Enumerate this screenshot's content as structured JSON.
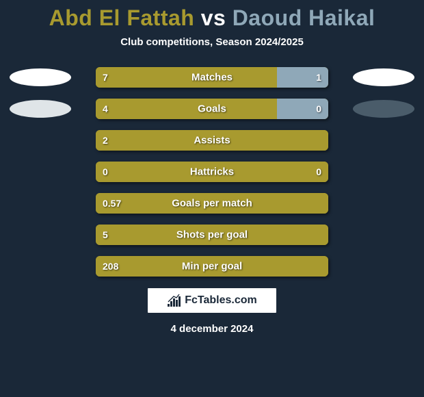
{
  "title_p1": "Abd El Fattah",
  "title_vs": " vs ",
  "title_p2": "Daoud Haikal",
  "subtitle": "Club competitions, Season 2024/2025",
  "player1_color": "#a89a2f",
  "player2_color": "#8fa8b8",
  "badge_left_colors": [
    "#ffffff",
    "#dfe5e8"
  ],
  "badge_right_colors": [
    "#ffffff",
    "#4a5c6a"
  ],
  "background_color": "#1a2838",
  "label_fontsize": 15,
  "value_fontsize": 14,
  "title_fontsize": 32,
  "rows": [
    {
      "label": "Matches",
      "left_val": "7",
      "right_val": "1",
      "left_pct": 78,
      "right_pct": 22,
      "show_badges": true,
      "badge_idx": 0
    },
    {
      "label": "Goals",
      "left_val": "4",
      "right_val": "0",
      "left_pct": 78,
      "right_pct": 22,
      "show_badges": true,
      "badge_idx": 1
    },
    {
      "label": "Assists",
      "left_val": "2",
      "right_val": "",
      "left_pct": 100,
      "right_pct": 0,
      "show_badges": false
    },
    {
      "label": "Hattricks",
      "left_val": "0",
      "right_val": "0",
      "left_pct": 100,
      "right_pct": 0,
      "show_badges": false
    },
    {
      "label": "Goals per match",
      "left_val": "0.57",
      "right_val": "",
      "left_pct": 100,
      "right_pct": 0,
      "show_badges": false
    },
    {
      "label": "Shots per goal",
      "left_val": "5",
      "right_val": "",
      "left_pct": 100,
      "right_pct": 0,
      "show_badges": false
    },
    {
      "label": "Min per goal",
      "left_val": "208",
      "right_val": "",
      "left_pct": 100,
      "right_pct": 0,
      "show_badges": false
    }
  ],
  "brand": "FcTables.com",
  "date": "4 december 2024"
}
